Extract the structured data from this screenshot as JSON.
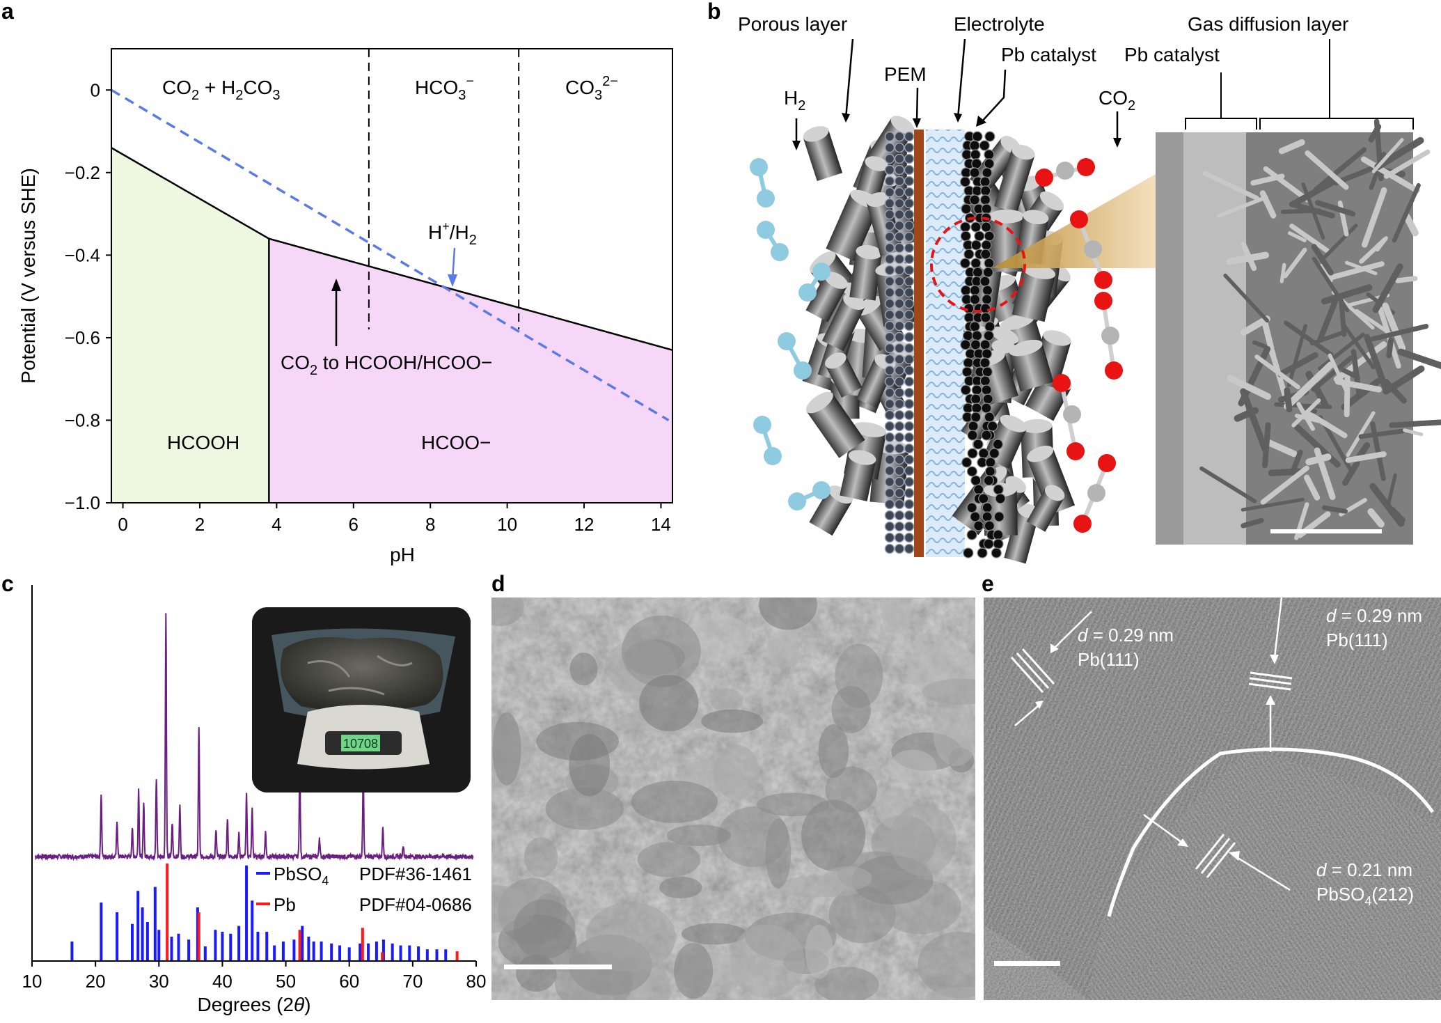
{
  "panels": {
    "a": "a",
    "b": "b",
    "c": "c",
    "d": "d",
    "e": "e"
  },
  "chart_data": [
    {
      "type": "area",
      "panel": "a",
      "xlabel": "pH",
      "ylabel": "Potential (V versus SHE)",
      "xlim": [
        -0.3,
        14.3
      ],
      "ylim": [
        -1.0,
        0.1
      ],
      "xticks": [
        0,
        2,
        4,
        6,
        8,
        10,
        12,
        14
      ],
      "xtick_labels": [
        "0",
        "2",
        "4",
        "6",
        "8",
        "10",
        "12",
        "14"
      ],
      "yticks": [
        0,
        -0.2,
        -0.4,
        -0.6,
        -0.8,
        -1.0
      ],
      "ytick_labels": [
        "0",
        "−0.2",
        "−0.4",
        "−0.6",
        "−0.8",
        "−1.0"
      ],
      "boundary_line": {
        "x": [
          -0.3,
          3.8,
          14.3
        ],
        "y": [
          -0.14,
          -0.36,
          -0.63
        ]
      },
      "h2_line": {
        "x": [
          -0.3,
          14.2
        ],
        "y": [
          0.0,
          -0.8
        ]
      },
      "vertical_dividers": [
        6.4,
        10.3
      ],
      "vertical_dividers_ymin": -0.58,
      "region_divider_x": 3.8,
      "regions": [
        {
          "name": "HCOOH",
          "color": "#eef8e0"
        },
        {
          "name": "HCOO−",
          "color": "#f6d7f8"
        }
      ],
      "labels": {
        "hcooh": "HCOOH",
        "hcoo": "HCOO−",
        "co2_h2co3_a": "CO",
        "co2_h2co3_sub1": "2",
        "co2_h2co3_b": " + H",
        "co2_h2co3_sub2": "2",
        "co2_h2co3_c": "CO",
        "co2_h2co3_sub3": "3",
        "hco3": "HCO",
        "hco3_sub": "3",
        "hco3_sup": "−",
        "co3": "CO",
        "co3_sub": "3",
        "co3_sup": "2−",
        "h_plus_a": "H",
        "h_plus_sup": "+",
        "h_plus_b": "/H",
        "h_plus_sub": "2",
        "co2_reduction_a": "CO",
        "co2_reduction_sub": "2",
        "co2_reduction_b": " to HCOOH/HCOO−"
      },
      "colors": {
        "line": "#000000",
        "h2_line": "#5a7be6",
        "hcooh_fill": "#eef8e0",
        "hcoo_fill": "#f6d7f8",
        "arrow_blue": "#5a7be6"
      }
    },
    {
      "type": "line",
      "panel": "c",
      "xlabel_a": "Degrees (2",
      "xlabel_theta": "θ",
      "xlabel_b": ")",
      "xlim": [
        10,
        80
      ],
      "xticks": [
        10,
        20,
        30,
        40,
        50,
        60,
        70,
        80
      ],
      "xtick_labels": [
        "10",
        "20",
        "30",
        "40",
        "50",
        "60",
        "70",
        "80"
      ],
      "xrd_peaks": [
        {
          "x": 20.9,
          "h": 0.26
        },
        {
          "x": 23.4,
          "h": 0.15
        },
        {
          "x": 25.8,
          "h": 0.12
        },
        {
          "x": 26.8,
          "h": 0.28
        },
        {
          "x": 27.6,
          "h": 0.22
        },
        {
          "x": 29.6,
          "h": 0.32
        },
        {
          "x": 31.1,
          "h": 1.0
        },
        {
          "x": 32.1,
          "h": 0.14
        },
        {
          "x": 33.3,
          "h": 0.22
        },
        {
          "x": 36.3,
          "h": 0.53
        },
        {
          "x": 39.0,
          "h": 0.11
        },
        {
          "x": 40.8,
          "h": 0.16
        },
        {
          "x": 42.6,
          "h": 0.1
        },
        {
          "x": 43.8,
          "h": 0.26
        },
        {
          "x": 44.7,
          "h": 0.2
        },
        {
          "x": 46.8,
          "h": 0.1
        },
        {
          "x": 52.2,
          "h": 0.38
        },
        {
          "x": 55.3,
          "h": 0.08
        },
        {
          "x": 62.2,
          "h": 0.34
        },
        {
          "x": 65.3,
          "h": 0.12
        },
        {
          "x": 68.5,
          "h": 0.05
        }
      ],
      "pbso4_sticks": [
        {
          "x": 16.3,
          "h": 0.2
        },
        {
          "x": 20.9,
          "h": 0.6
        },
        {
          "x": 23.4,
          "h": 0.5
        },
        {
          "x": 25.8,
          "h": 0.38
        },
        {
          "x": 26.7,
          "h": 0.72
        },
        {
          "x": 27.4,
          "h": 0.55
        },
        {
          "x": 28.2,
          "h": 0.4
        },
        {
          "x": 29.4,
          "h": 0.76
        },
        {
          "x": 30.0,
          "h": 0.32
        },
        {
          "x": 32.0,
          "h": 0.25
        },
        {
          "x": 33.1,
          "h": 0.28
        },
        {
          "x": 34.7,
          "h": 0.22
        },
        {
          "x": 36.1,
          "h": 0.55
        },
        {
          "x": 37.3,
          "h": 0.15
        },
        {
          "x": 38.9,
          "h": 0.32
        },
        {
          "x": 40.0,
          "h": 0.3
        },
        {
          "x": 41.3,
          "h": 0.28
        },
        {
          "x": 42.6,
          "h": 0.36
        },
        {
          "x": 43.8,
          "h": 0.98
        },
        {
          "x": 44.7,
          "h": 0.62
        },
        {
          "x": 45.6,
          "h": 0.3
        },
        {
          "x": 47.0,
          "h": 0.3
        },
        {
          "x": 48.2,
          "h": 0.16
        },
        {
          "x": 49.6,
          "h": 0.2
        },
        {
          "x": 51.3,
          "h": 0.22
        },
        {
          "x": 52.6,
          "h": 0.36
        },
        {
          "x": 53.6,
          "h": 0.25
        },
        {
          "x": 54.4,
          "h": 0.2
        },
        {
          "x": 55.6,
          "h": 0.2
        },
        {
          "x": 57.2,
          "h": 0.18
        },
        {
          "x": 58.5,
          "h": 0.16
        },
        {
          "x": 60.0,
          "h": 0.14
        },
        {
          "x": 61.7,
          "h": 0.18
        },
        {
          "x": 63.0,
          "h": 0.18
        },
        {
          "x": 64.3,
          "h": 0.2
        },
        {
          "x": 65.4,
          "h": 0.22
        },
        {
          "x": 66.8,
          "h": 0.18
        },
        {
          "x": 68.1,
          "h": 0.16
        },
        {
          "x": 69.5,
          "h": 0.16
        },
        {
          "x": 70.9,
          "h": 0.15
        },
        {
          "x": 72.3,
          "h": 0.12
        },
        {
          "x": 73.8,
          "h": 0.12
        },
        {
          "x": 75.2,
          "h": 0.12
        }
      ],
      "pb_sticks": [
        {
          "x": 31.3,
          "h": 1.0
        },
        {
          "x": 36.3,
          "h": 0.5
        },
        {
          "x": 52.2,
          "h": 0.32
        },
        {
          "x": 62.1,
          "h": 0.34
        },
        {
          "x": 65.2,
          "h": 0.09
        },
        {
          "x": 77.0,
          "h": 0.1
        }
      ],
      "legend": [
        {
          "name_a": "PbSO",
          "name_sub": "4",
          "pdf": "PDF#36-1461",
          "color": "#1a1aff"
        },
        {
          "name_a": "Pb",
          "name_sub": "",
          "pdf": "PDF#04-0686",
          "color": "#ff1a1a"
        }
      ],
      "colors": {
        "pattern": "#6b1f82",
        "pbso4": "#1a1aff",
        "pb": "#ff1a1a"
      },
      "inset_readout": "10708"
    }
  ],
  "panel_b": {
    "labels": {
      "porous_layer": "Porous layer",
      "pem": "PEM",
      "electrolyte": "Electrolyte",
      "pb_catalyst_left": "Pb catalyst",
      "pb_catalyst_right": "Pb catalyst",
      "gas_diffusion_layer": "Gas diffusion layer",
      "h2_a": "H",
      "h2_sub": "2",
      "co2_a": "CO",
      "co2_sub": "2"
    },
    "colors": {
      "h2": "#8fcbe0",
      "o": "#e81414",
      "c": "#b4b4b4",
      "pem": "#a0471a",
      "electrolyte": "#bcd9f2"
    }
  },
  "panel_e": {
    "labels": {
      "d1_var": "d",
      "d1_val": " = 0.29 nm",
      "d1_plane": "Pb(111)",
      "d2_var": "d",
      "d2_val": " = 0.29 nm",
      "d2_plane": "Pb(111)",
      "d3_var": "d",
      "d3_val": " = 0.21 nm",
      "d3_plane_a": "PbSO",
      "d3_plane_sub": "4",
      "d3_plane_b": "(212)"
    }
  }
}
